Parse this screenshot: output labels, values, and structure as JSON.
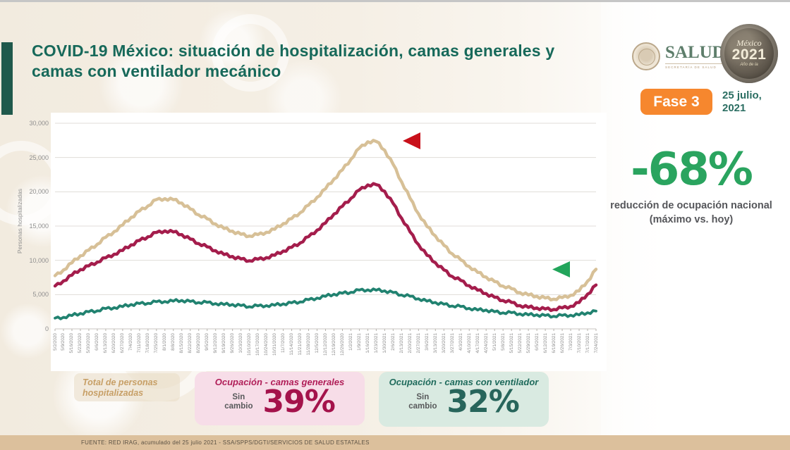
{
  "header": {
    "title": "COVID-19 México: situación de hospitalización, camas generales y camas con ventilador mecánico",
    "salud_logo": {
      "name": "SALUD",
      "subtitle": "SECRETARÍA DE SALUD"
    },
    "mexico_logo": {
      "line1": "México",
      "line2": "2021",
      "line3": "Año de la"
    },
    "fase_badge": "Fase 3",
    "date": "25 julio,\n2021"
  },
  "right_panel": {
    "big_stat": "-68%",
    "caption": "reducción de ocupación nacional (máximo vs. hoy)"
  },
  "legend_boxes": {
    "total": {
      "label": "Total de personas hospitalizadas"
    },
    "generales": {
      "title": "Ocupación - camas generales",
      "status": "Sin\ncambio",
      "value": "39%"
    },
    "ventilador": {
      "title": "Ocupación - camas con ventilador",
      "status": "Sin\ncambio",
      "value": "32%"
    }
  },
  "footer": {
    "text": "FUENTE: RED IRAG, acumulado del 25 julio 2021  -  SSA/SPPS/DGTI/SERVICIOS DE SALUD ESTATALES"
  },
  "chart_data": {
    "type": "line",
    "ylabel": "Personas hospitalizadas",
    "ylim": [
      0,
      30000
    ],
    "yticks": [
      0,
      5000,
      10000,
      15000,
      20000,
      25000,
      30000
    ],
    "grid": "horizontal",
    "legend_position": "none",
    "categories": [
      "5/2/2020",
      "5/9/2020",
      "5/16/2020",
      "5/23/2020",
      "5/30/2020",
      "6/6/2020",
      "6/13/2020",
      "6/20/2020",
      "6/27/2020",
      "7/4/2020",
      "7/11/2020",
      "7/18/2020",
      "7/25/2020",
      "8/1/2020",
      "8/8/2020",
      "8/15/2020",
      "8/22/2020",
      "8/29/2020",
      "9/5/2020",
      "9/12/2020",
      "9/19/2020",
      "9/26/2020",
      "10/3/2020",
      "10/10/2020",
      "10/17/2020",
      "10/24/2020",
      "10/31/2020",
      "11/7/2020",
      "11/14/2020",
      "11/21/2020",
      "11/28/2020",
      "12/5/2020",
      "12/12/2020",
      "12/19/2020",
      "12/26/2020",
      "1/2/2021",
      "1/9/2021",
      "1/16/2021",
      "1/23/2021",
      "1/30/2021",
      "2/6/2021",
      "2/13/2021",
      "2/20/2021",
      "2/27/2021",
      "3/6/2021",
      "3/13/2021",
      "3/20/2021",
      "3/27/2021",
      "4/3/2021",
      "4/10/2021",
      "4/17/2021",
      "4/24/2021",
      "5/1/2021",
      "5/8/2021",
      "5/15/2021",
      "5/22/2021",
      "5/29/2021",
      "6/5/2021",
      "6/12/2021",
      "6/19/2021",
      "6/26/2021",
      "7/3/2021",
      "7/10/2021",
      "7/17/2021",
      "7/24/2021"
    ],
    "series": [
      {
        "name": "Total de personas hospitalizadas",
        "color": "#d7c097",
        "values": [
          7700,
          8600,
          9700,
          10600,
          11500,
          12400,
          13300,
          14200,
          15200,
          16200,
          17200,
          18000,
          18800,
          19000,
          18900,
          18300,
          17500,
          16700,
          16000,
          15300,
          14700,
          14200,
          13800,
          13600,
          13700,
          14100,
          14600,
          15300,
          16100,
          17000,
          18000,
          19200,
          20500,
          21800,
          23200,
          24800,
          26300,
          27300,
          27400,
          26000,
          24000,
          21500,
          19000,
          16800,
          15000,
          13500,
          12200,
          11000,
          10000,
          9100,
          8300,
          7500,
          6900,
          6300,
          5800,
          5300,
          5000,
          4700,
          4500,
          4400,
          4500,
          4900,
          5600,
          6900,
          8700
        ]
      },
      {
        "name": "Ocupación - camas generales",
        "color": "#a41d4c",
        "values": [
          6200,
          7000,
          7900,
          8600,
          9200,
          9800,
          10300,
          10900,
          11500,
          12200,
          12900,
          13500,
          14000,
          14300,
          14200,
          13700,
          13100,
          12500,
          11900,
          11400,
          10900,
          10500,
          10200,
          10000,
          10100,
          10400,
          10800,
          11300,
          11900,
          12600,
          13400,
          14400,
          15500,
          16700,
          17900,
          19100,
          20200,
          21000,
          21100,
          20000,
          18300,
          16200,
          14100,
          12300,
          10800,
          9600,
          8600,
          7700,
          7000,
          6300,
          5700,
          5100,
          4600,
          4200,
          3800,
          3400,
          3200,
          3000,
          2900,
          2900,
          3000,
          3300,
          3900,
          5000,
          6400
        ]
      },
      {
        "name": "Ocupación - camas con ventilador",
        "color": "#218270",
        "values": [
          1500,
          1700,
          2000,
          2200,
          2500,
          2700,
          2900,
          3100,
          3300,
          3500,
          3700,
          3800,
          3900,
          4000,
          4100,
          4100,
          4000,
          3900,
          3800,
          3700,
          3600,
          3500,
          3400,
          3300,
          3300,
          3400,
          3500,
          3600,
          3800,
          4000,
          4200,
          4500,
          4800,
          5000,
          5200,
          5400,
          5600,
          5700,
          5700,
          5500,
          5300,
          5000,
          4700,
          4400,
          4100,
          3800,
          3600,
          3400,
          3200,
          3000,
          2800,
          2700,
          2500,
          2400,
          2300,
          2200,
          2100,
          2000,
          1950,
          1900,
          1900,
          2000,
          2100,
          2300,
          2600
        ]
      }
    ],
    "annotations": [
      {
        "name": "max-marker",
        "shape": "triangle-left",
        "color": "#c8101a",
        "meaning": "máximo nacional"
      },
      {
        "name": "current-marker",
        "shape": "triangle-left",
        "color": "#22a55b",
        "meaning": "nivel actual (hoy)"
      }
    ]
  }
}
